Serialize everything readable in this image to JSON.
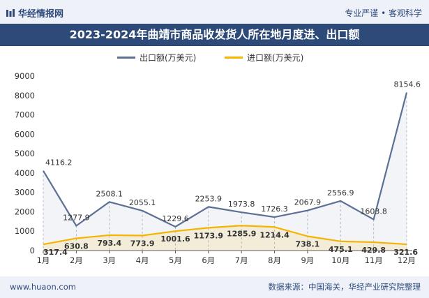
{
  "header": {
    "brand": "华经情报网",
    "tagline": "专业严谨 • 客观科学"
  },
  "footer": {
    "website": "www.huaon.com",
    "source": "数据来源：中国海关，华经产业研究院整理"
  },
  "colors": {
    "export": "#5c6f94",
    "import": "#f5b400",
    "title_bg": "#2d4a79",
    "bar_bg": "#eef2f8"
  },
  "chart_data": {
    "type": "line",
    "title": "2023-2024年曲靖市商品收发货人所在地月度进、出口额",
    "categories": [
      "1月",
      "2月",
      "3月",
      "4月",
      "5月",
      "6月",
      "7月",
      "8月",
      "9月",
      "10月",
      "11月",
      "12月"
    ],
    "series": [
      {
        "name": "出口额(万美元)",
        "values": [
          4116.2,
          1277.9,
          2508.1,
          2055.1,
          1229.6,
          2253.9,
          1973.8,
          1726.3,
          2067.9,
          2556.9,
          1603.8,
          8154.6
        ]
      },
      {
        "name": "进口额(万美元)",
        "values": [
          317.4,
          630.8,
          793.4,
          773.9,
          1001.6,
          1173.9,
          1285.9,
          1214.4,
          738.1,
          475.1,
          429.8,
          321.6
        ]
      }
    ],
    "yticks": [
      "0",
      "1000",
      "2000",
      "3000",
      "4000",
      "5000",
      "6000",
      "7000",
      "8000",
      "9000"
    ],
    "ylim": [
      0,
      9000
    ],
    "legend_position": "top",
    "grid": false
  }
}
